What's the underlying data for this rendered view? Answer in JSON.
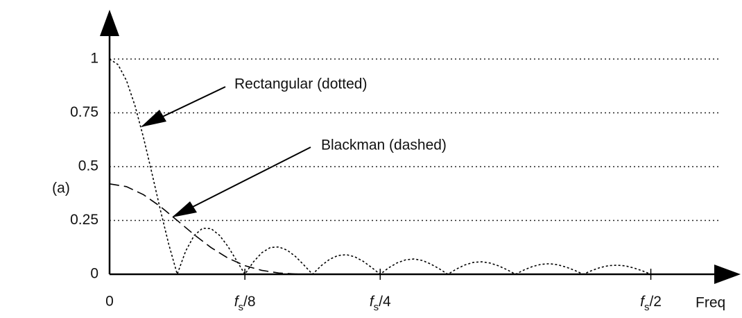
{
  "chart_data": {
    "type": "line",
    "panel_label": "(a)",
    "x_label": "Freq",
    "xlim": [
      0,
      0.565
    ],
    "ylim": [
      0,
      1.2
    ],
    "xticks": [
      0,
      {
        "value": 0.125,
        "label": "fs/8"
      },
      {
        "value": 0.25,
        "label": "fs/4"
      },
      {
        "value": 0.5,
        "label": "fs/2"
      }
    ],
    "yticks": [
      0,
      0.25,
      0.5,
      0.75,
      1
    ],
    "grid": true,
    "series": [
      {
        "name": "Rectangular (dotted)",
        "color": "#000000",
        "style": "dotted",
        "x": [
          0,
          0.0078125,
          0.015625,
          0.0234375,
          0.03125,
          0.0390625,
          0.046875,
          0.0546875,
          0.0625,
          0.0703125,
          0.078125,
          0.0859375,
          0.09375,
          0.1015625,
          0.109375,
          0.1171875,
          0.125,
          0.1328125,
          0.140625,
          0.1484375,
          0.15625,
          0.1640625,
          0.171875,
          0.1796875,
          0.1875,
          0.1953125,
          0.203125,
          0.2109375,
          0.21875,
          0.2265625,
          0.234375,
          0.2421875,
          0.25,
          0.2578125,
          0.265625,
          0.2734375,
          0.28125,
          0.2890625,
          0.296875,
          0.3046875,
          0.3125,
          0.3203125,
          0.328125,
          0.3359375,
          0.34375,
          0.3515625,
          0.359375,
          0.3671875,
          0.375,
          0.3828125,
          0.390625,
          0.3984375,
          0.40625,
          0.4140625,
          0.421875,
          0.4296875,
          0.4375,
          0.4453125,
          0.453125,
          0.4609375,
          0.46875,
          0.4765625,
          0.484375,
          0.4921875,
          0.5
        ],
        "values": [
          1,
          0.974,
          0.9,
          0.784,
          0.637,
          0.471,
          0.3,
          0.139,
          0,
          0.108,
          0.18,
          0.214,
          0.212,
          0.181,
          0.129,
          0.065,
          0,
          0.057,
          0.1,
          0.124,
          0.127,
          0.112,
          0.082,
          0.042,
          0,
          0.039,
          0.069,
          0.087,
          0.091,
          0.081,
          0.06,
          0.031,
          0,
          0.03,
          0.053,
          0.067,
          0.071,
          0.064,
          0.047,
          0.025,
          0,
          0.024,
          0.043,
          0.055,
          0.058,
          0.052,
          0.039,
          0.021,
          0,
          0.02,
          0.036,
          0.046,
          0.049,
          0.044,
          0.033,
          0.018,
          0,
          0.017,
          0.031,
          0.04,
          0.042,
          0.039,
          0.029,
          0.016,
          0
        ]
      },
      {
        "name": "Blackman (dashed)",
        "color": "#000000",
        "style": "dashed",
        "x": [
          0,
          0.015625,
          0.03125,
          0.046875,
          0.0625,
          0.078125,
          0.09375,
          0.109375,
          0.125,
          0.140625,
          0.15625,
          0.171875,
          0.1875,
          0.25,
          0.5
        ],
        "values": [
          0.42,
          0.407,
          0.37,
          0.315,
          0.25,
          0.184,
          0.124,
          0.075,
          0.04,
          0.018,
          0.006,
          0.001,
          0,
          0,
          0
        ]
      }
    ]
  }
}
